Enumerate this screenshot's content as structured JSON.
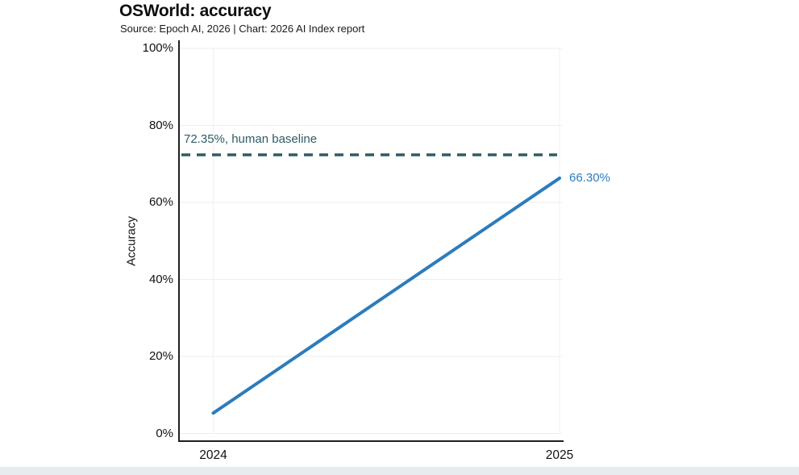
{
  "header": {
    "title": "OSWorld: accuracy",
    "subtitle": "Source: Epoch AI, 2026 | Chart: 2026 AI Index report"
  },
  "chart_data": {
    "type": "line",
    "title": "OSWorld: accuracy",
    "subtitle": "Source: Epoch AI, 2026 | Chart: 2026 AI Index report",
    "xlabel": "",
    "ylabel": "Accuracy",
    "x": [
      2024,
      2025
    ],
    "x_tick_labels": [
      "2024",
      "2025"
    ],
    "y_ticks": [
      0,
      20,
      40,
      60,
      80,
      100
    ],
    "y_tick_labels": [
      "0%",
      "20%",
      "40%",
      "60%",
      "80%",
      "100%"
    ],
    "ylim": [
      0,
      100
    ],
    "grid": "horizontal-light",
    "legend": "none",
    "series": [
      {
        "name": "OSWorld accuracy",
        "values": [
          5.3,
          66.3
        ],
        "color": "#2b7cbd",
        "end_label": "66.30%"
      }
    ],
    "baseline": {
      "value": 72.35,
      "label": "72.35%, human baseline",
      "color": "#2e5c66",
      "style": "dashed"
    }
  },
  "colors": {
    "accent_blue": "#2b7cbd",
    "baseline_teal": "#2e5c66",
    "axis": "#1f1f1f",
    "grid_horizontal": "#ededed",
    "grid_vertical": "#f1f1f1",
    "text": "#111111",
    "bottom_bar": "#e8ecf1"
  }
}
